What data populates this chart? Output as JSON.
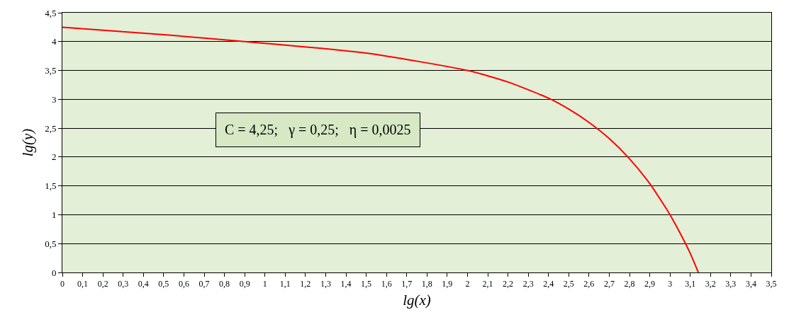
{
  "chart_data": {
    "type": "line",
    "xlabel": "lg(x)",
    "ylabel": "lg(y)",
    "x": [
      0,
      0.5,
      1,
      1.5,
      2,
      2.2,
      2.4,
      2.5,
      2.6,
      2.7,
      2.8,
      2.9,
      3,
      3.05,
      3.1,
      3.14
    ],
    "series": [
      {
        "color": "#ff0000",
        "values": [
          4.25,
          4.12,
          3.97,
          3.8,
          3.5,
          3.3,
          3.02,
          2.83,
          2.6,
          2.32,
          1.97,
          1.54,
          1,
          0.68,
          0.33,
          0
        ]
      }
    ],
    "xlim": [
      0,
      3.5
    ],
    "xticks": [
      0,
      {
        "value": 0.1,
        "label": "0,1"
      },
      {
        "value": 0.2,
        "label": "0,2"
      },
      {
        "value": 0.3,
        "label": "0,3"
      },
      {
        "value": 0.4,
        "label": "0,4"
      },
      {
        "value": 0.5,
        "label": "0,5"
      },
      {
        "value": 0.6,
        "label": "0,6"
      },
      {
        "value": 0.7,
        "label": "0,7"
      },
      {
        "value": 0.8,
        "label": "0,8"
      },
      {
        "value": 0.9,
        "label": "0,9"
      },
      1,
      {
        "value": 1.1,
        "label": "1,1"
      },
      {
        "value": 1.2,
        "label": "1,2"
      },
      {
        "value": 1.3,
        "label": "1,3"
      },
      {
        "value": 1.4,
        "label": "1,4"
      },
      {
        "value": 1.5,
        "label": "1,5"
      },
      {
        "value": 1.6,
        "label": "1,6"
      },
      {
        "value": 1.7,
        "label": "1,7"
      },
      {
        "value": 1.8,
        "label": "1,8"
      },
      {
        "value": 1.9,
        "label": "1,9"
      },
      2,
      {
        "value": 2.1,
        "label": "2,1"
      },
      {
        "value": 2.2,
        "label": "2,2"
      },
      {
        "value": 2.3,
        "label": "2,3"
      },
      {
        "value": 2.4,
        "label": "2,4"
      },
      {
        "value": 2.5,
        "label": "2,5"
      },
      {
        "value": 2.6,
        "label": "2,6"
      },
      {
        "value": 2.7,
        "label": "2,7"
      },
      {
        "value": 2.8,
        "label": "2,8"
      },
      {
        "value": 2.9,
        "label": "2,9"
      },
      3,
      {
        "value": 3.1,
        "label": "3,1"
      },
      {
        "value": 3.2,
        "label": "3,2"
      },
      {
        "value": 3.3,
        "label": "3,3"
      },
      {
        "value": 3.4,
        "label": "3,4"
      },
      {
        "value": 3.5,
        "label": "3,5"
      }
    ],
    "ylim": [
      0,
      4.5
    ],
    "yticks": [
      0,
      {
        "value": 0.5,
        "label": "0,5"
      },
      1,
      {
        "value": 1.5,
        "label": "1,5"
      },
      2,
      {
        "value": 2.5,
        "label": "2,5"
      },
      3,
      {
        "value": 3.5,
        "label": "3,5"
      },
      4,
      {
        "value": 4.5,
        "label": "4,5"
      }
    ],
    "grid": "y",
    "marker": "none",
    "line_style": "solid",
    "annotations": [
      "C = 4,25;   γ = 0,25;   η = 0,0025"
    ]
  }
}
